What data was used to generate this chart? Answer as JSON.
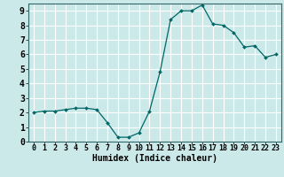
{
  "x": [
    0,
    1,
    2,
    3,
    4,
    5,
    6,
    7,
    8,
    9,
    10,
    11,
    12,
    13,
    14,
    15,
    16,
    17,
    18,
    19,
    20,
    21,
    22,
    23
  ],
  "y": [
    2.0,
    2.1,
    2.1,
    2.2,
    2.3,
    2.3,
    2.2,
    1.3,
    0.3,
    0.3,
    0.6,
    2.1,
    4.8,
    8.4,
    9.0,
    9.0,
    9.4,
    8.1,
    8.0,
    7.5,
    6.5,
    6.6,
    5.8,
    6.0
  ],
  "xlabel": "Humidex (Indice chaleur)",
  "ylim": [
    0,
    9.5
  ],
  "xlim": [
    -0.5,
    23.5
  ],
  "bg_color": "#cce9e9",
  "grid_color": "#ffffff",
  "line_color": "#006666",
  "marker_color": "#006666",
  "xlabel_fontsize": 7,
  "tick_fontsize": 6,
  "xticks": [
    0,
    1,
    2,
    3,
    4,
    5,
    6,
    7,
    8,
    9,
    10,
    11,
    12,
    13,
    14,
    15,
    16,
    17,
    18,
    19,
    20,
    21,
    22,
    23
  ],
  "yticks": [
    0,
    1,
    2,
    3,
    4,
    5,
    6,
    7,
    8,
    9
  ]
}
